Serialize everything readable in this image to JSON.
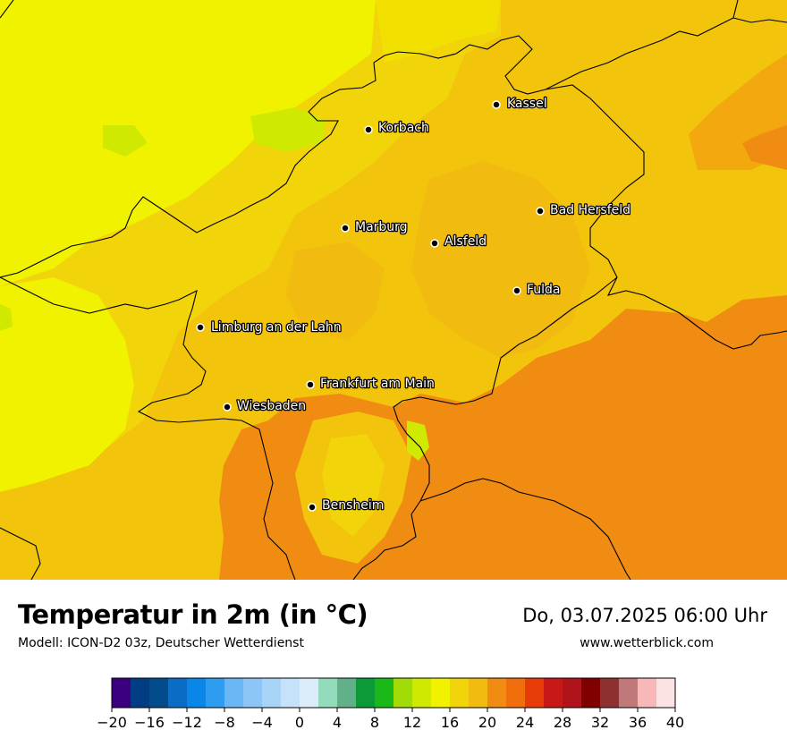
{
  "map": {
    "background_color": "#f2c40c",
    "border_color": "#000000",
    "cities": [
      {
        "name": "Kassel"
      },
      {
        "name": "Korbach"
      },
      {
        "name": "Bad Hersfeld"
      },
      {
        "name": "Marburg"
      },
      {
        "name": "Alsfeld"
      },
      {
        "name": "Fulda"
      },
      {
        "name": "Limburg an der Lahn"
      },
      {
        "name": "Frankfurt am Main"
      },
      {
        "name": "Wiesbaden"
      },
      {
        "name": "Bensheim"
      }
    ]
  },
  "footer": {
    "title": "Temperatur in 2m (in °C)",
    "model": "Modell: ICON-D2 03z, Deutscher Wetterdienst",
    "datetime": "Do, 03.07.2025 06:00 Uhr",
    "website": "www.wetterblick.com"
  },
  "legend": {
    "min": -20,
    "max": 40,
    "step": 2,
    "colors": [
      "#3a0080",
      "#013d82",
      "#024c8c",
      "#0a6cc4",
      "#0a86e8",
      "#2e9cf0",
      "#6bb6f4",
      "#8cc6f6",
      "#a8d4f8",
      "#c6e2fa",
      "#dbecfb",
      "#92dcbc",
      "#62b08a",
      "#0c9a38",
      "#1ab818",
      "#a2dc06",
      "#cfea00",
      "#f0f200",
      "#f2d40a",
      "#f2bb0f",
      "#f08c12",
      "#f06e0c",
      "#e83c08",
      "#c81818",
      "#b0141a",
      "#800000",
      "#8e3030",
      "#c07878",
      "#f8b8b8",
      "#fde2e4"
    ],
    "tick_labels": [
      "−20",
      "−16",
      "−12",
      "−8",
      "−4",
      "0",
      "4",
      "8",
      "12",
      "16",
      "20",
      "24",
      "28",
      "32",
      "36",
      "40"
    ]
  }
}
